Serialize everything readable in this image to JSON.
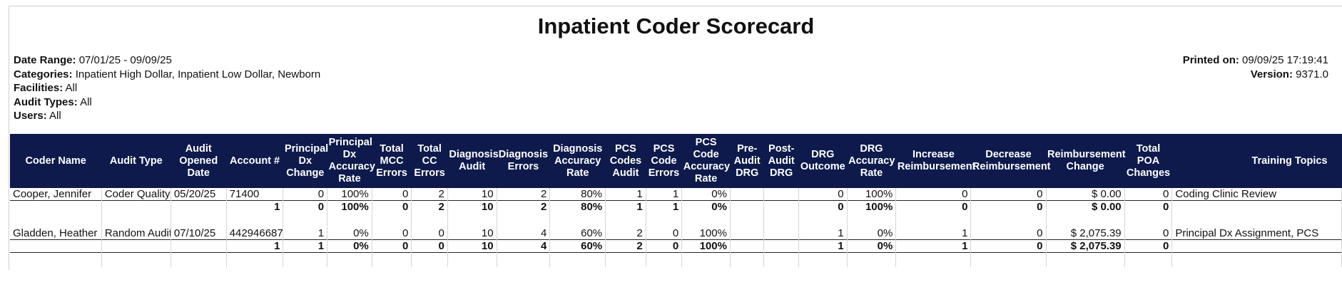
{
  "title": "Inpatient Coder Scorecard",
  "filters": [
    {
      "label": "Date Range:",
      "value": "07/01/25 - 09/09/25"
    },
    {
      "label": "Categories:",
      "value": "Inpatient High Dollar, Inpatient Low Dollar, Newborn"
    },
    {
      "label": "Facilities:",
      "value": "All"
    },
    {
      "label": "Audit Types:",
      "value": "All"
    },
    {
      "label": "Users:",
      "value": "All"
    }
  ],
  "meta": {
    "printed_label": "Printed on:",
    "printed_value": "09/09/25 17:19:41",
    "version_label": "Version:",
    "version_value": "9371.0"
  },
  "colors": {
    "header_bg": "#0e1a4c",
    "header_text": "#ffffff"
  },
  "columns": [
    "Coder Name",
    "Audit Type",
    "Audit Opened Date",
    "Account #",
    "Principal Dx Change",
    "Principal Dx Accuracy Rate",
    "Total MCC Errors",
    "Total CC Errors",
    "Diagnosis Audit",
    "Diagnosis Errors",
    "Diagnosis Accuracy Rate",
    "PCS Codes Audit",
    "PCS Code Errors",
    "PCS Code Accuracy Rate",
    "Pre-Audit DRG",
    "Post-Audit DRG",
    "DRG Outcome",
    "DRG Accuracy Rate",
    "Increase Reimbursement",
    "Decrease Reimbursement",
    "Reimbursement Change",
    "Total POA Changes",
    "Training Topics"
  ],
  "groups": [
    {
      "detail": [
        "Cooper, Jennifer",
        "Coder Quality",
        "05/20/25",
        "71400",
        "0",
        "100%",
        "0",
        "2",
        "10",
        "2",
        "80%",
        "1",
        "1",
        "0%",
        "",
        "",
        "0",
        "100%",
        "0",
        "0",
        "$ 0.00",
        "0",
        "Coding Clinic Review"
      ],
      "summary": [
        "",
        "",
        "",
        "1",
        "0",
        "100%",
        "0",
        "2",
        "10",
        "2",
        "80%",
        "1",
        "1",
        "0%",
        "",
        "",
        "0",
        "100%",
        "0",
        "0",
        "$ 0.00",
        "0",
        ""
      ]
    },
    {
      "detail": [
        "Gladden, Heather",
        "Random Audit",
        "07/10/25",
        "442946687",
        "1",
        "0%",
        "0",
        "0",
        "10",
        "4",
        "60%",
        "2",
        "0",
        "100%",
        "",
        "",
        "1",
        "0%",
        "1",
        "0",
        "$ 2,075.39",
        "0",
        "Principal Dx Assignment, PCS"
      ],
      "summary": [
        "",
        "",
        "",
        "1",
        "1",
        "0%",
        "0",
        "0",
        "10",
        "4",
        "60%",
        "2",
        "0",
        "100%",
        "",
        "",
        "1",
        "0%",
        "1",
        "0",
        "$ 2,075.39",
        "0",
        ""
      ]
    }
  ]
}
